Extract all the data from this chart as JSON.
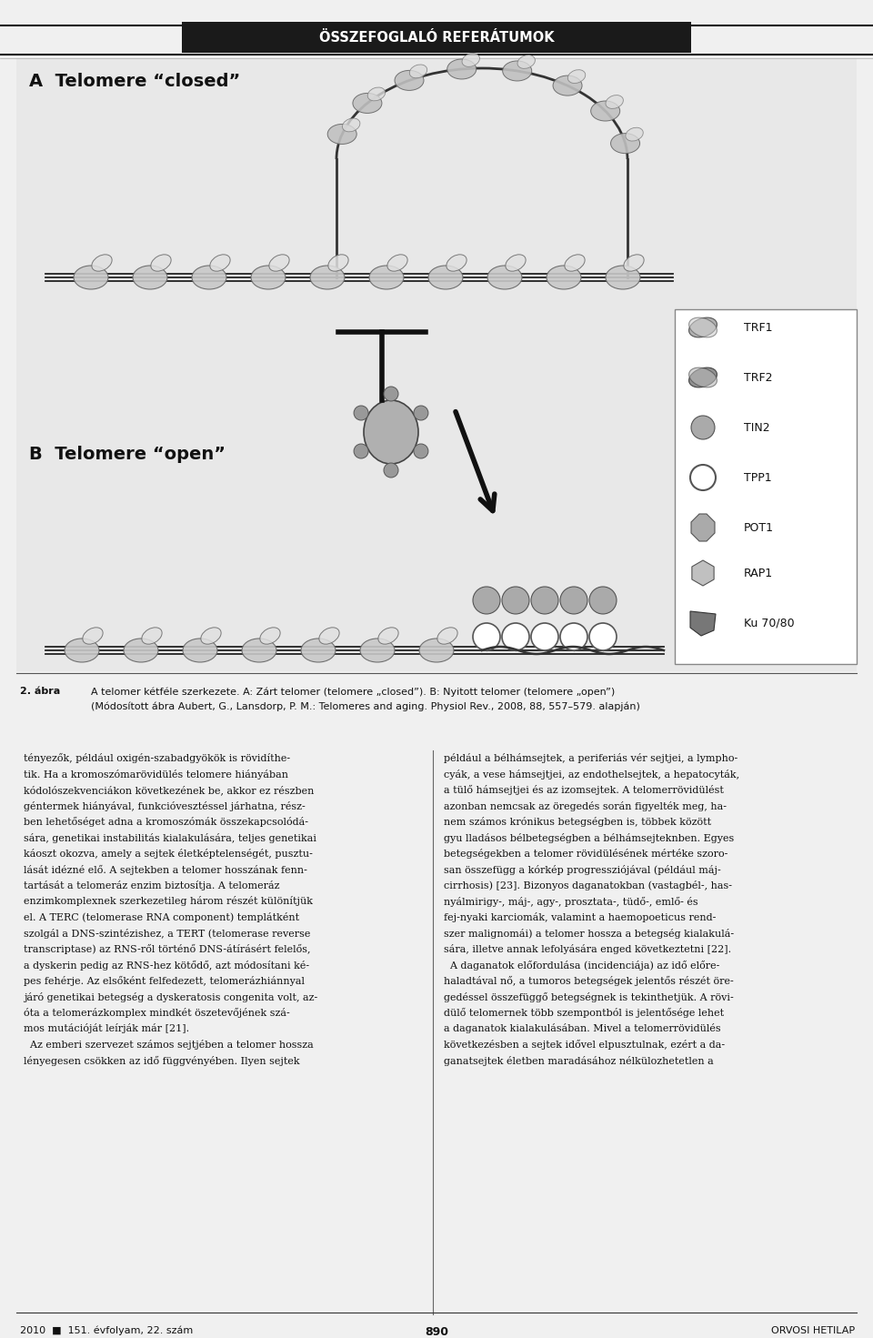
{
  "header_text": "ÖSSZEFOGLALÓ REFERÁTUMOK",
  "header_bg": "#1a1a1a",
  "header_text_color": "#ffffff",
  "page_bg": "#f0f0f0",
  "figure_bg": "#e8e8e8",
  "label_A": "A  Telomere “closed”",
  "label_B": "B  Telomere “open”",
  "legend_items": [
    "TRF1",
    "TRF2",
    "TIN2",
    "TPP1",
    "POT1",
    "RAP1",
    "Ku 70/80"
  ],
  "caption_number": "2. ábra",
  "caption_text": "A telomer kétféle szerkezete. A: Zárt telomer (telomere „closed”). B: Nyitott telomer (telomere „open”)\n(Módosított ábra Aubert, G., Lansdorp, P. M.: Telomeres and aging. Physiol Rev., 2008, 88, 557–579. alapján)",
  "body_left": "tényezők, például oxigén-szabadgyökök is rövidíthe-\ntik. Ha a kromoszómarövidülés telomere hiányában\nkódolószekvenciákon következének be, akkor ez részben\ngéntermek hiányával, funkcióvesztéssel járhatna, rész-\nben lehetőséget adna a kromoszómák összekapcsolódá-\nsára, genetikai instabilitás kialakulására, teljes genetikai\nkáoszt okozva, amely a sejtek életképtelenségét, pusztu-\nlását idézné elő. A sejtekben a telomer hosszának fenn-\ntartását a telomeráz enzim biztosítja. A telomeráz\nenzimkomplexnek szerkezetileg három részét különítjük\nel. A TERC (telomerase RNA component) templátként\nszolgál a DNS-szintézishez, a TERT (telomerase reverse\ntranscriptase) az RNS-ről történő DNS-átírásért felelős,\na dyskerin pedig az RNS-hez kötődő, azt módosítani ké-\npes fehérje. Az elsőként felfedezett, telomerázhiánnyal\njáró genetikai betegség a dyskeratosis congenita volt, az-\nóta a telomerázkomplex mindkét öszetevőjének szá-\nmos mutációját leírják már [21].\n  Az emberi szervezet számos sejtjében a telomer hossza\nlényegesen csökken az idő függvényében. Ilyen sejtek",
  "body_right": "például a bélhámsejtek, a periferiás vér sejtjei, a lympho-\ncyák, a vese hámsejtjei, az endothelsejtek, a hepatocyták,\na tülő hámsejtjei és az izomsejtek. A telomerrövidülést\nazonban nemcsak az öregedés során figyelték meg, ha-\nnem számos krónikus betegségben is, többek között\ngyu lladásos bélbetegségben a bélhámsejteknben. Egyes\nbetegségekben a telomer rövidülésének mértéke szoro-\nsan összefügg a kórkép progressziójával (például máj-\ncirrhosis) [23]. Bizonyos daganatokban (vastagbél-, has-\nnyálmirigy-, máj-, agy-, prosztata-, tüdő-, emlő- és\nfej-nyaki karciomák, valamint a haemopoeticus rend-\nszer malignomái) a telomer hossza a betegség kialakulá-\nsára, illetve annak lefolyására enged következtetni [22].\n  A daganatok előfordulása (incidenciája) az idő előre-\nhaladtával nő, a tumoros betegségek jelentős részét öre-\ngedéssel összefüggő betegségnek is tekinthetjük. A rövi-\ndülő telomernek több szempontból is jelentősége lehet\na daganatok kialakulásában. Mivel a telomerrövidülés\nkövetkezésben a sejtek idővel elpusztulnak, ezért a da-\nganatsejtek életben maradásához nélkülozhetetlen a",
  "footer_left": "2010  ■  151. évfolyam, 22. szám",
  "footer_center": "890",
  "footer_right": "ORVOSI HETILAP",
  "top_line_color": "#333333",
  "divider_color": "#555555",
  "figure_area_color": "#dcdcdc"
}
